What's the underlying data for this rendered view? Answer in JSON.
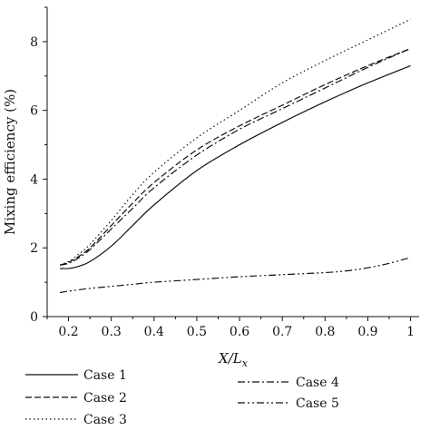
{
  "chart_data": {
    "type": "line",
    "title": "",
    "xlabel": "X/L_x",
    "xlabel_parts": {
      "base": "X/L",
      "sub": "x"
    },
    "ylabel": "Mixing efficiency (%)",
    "xlim": [
      0.15,
      1.02
    ],
    "ylim": [
      0,
      9
    ],
    "xticks": [
      0.2,
      0.3,
      0.4,
      0.5,
      0.6,
      0.7,
      0.8,
      0.9,
      1
    ],
    "xtick_labels": [
      "0.2",
      "0.3",
      "0.4",
      "0.5",
      "0.6",
      "0.7",
      "0.8",
      "0.9",
      "1"
    ],
    "yticks": [
      0,
      2,
      4,
      6,
      8
    ],
    "ytick_labels": [
      "0",
      "2",
      "4",
      "6",
      "8"
    ],
    "grid": false,
    "legend_position": "bottom",
    "series": [
      {
        "name": "Case 1",
        "style": "solid",
        "x": [
          0.18,
          0.2,
          0.22,
          0.25,
          0.3,
          0.35,
          0.4,
          0.5,
          0.6,
          0.7,
          0.8,
          0.9,
          1.0
        ],
        "y": [
          1.4,
          1.4,
          1.45,
          1.6,
          2.05,
          2.65,
          3.25,
          4.25,
          5.0,
          5.65,
          6.25,
          6.8,
          7.3
        ]
      },
      {
        "name": "Case 2",
        "style": "dashed",
        "x": [
          0.18,
          0.2,
          0.22,
          0.25,
          0.3,
          0.35,
          0.4,
          0.5,
          0.6,
          0.7,
          0.8,
          0.9,
          1.0
        ],
        "y": [
          1.5,
          1.58,
          1.72,
          2.0,
          2.65,
          3.3,
          3.9,
          4.85,
          5.55,
          6.15,
          6.75,
          7.3,
          7.8
        ]
      },
      {
        "name": "Case 3",
        "style": "dotted",
        "x": [
          0.18,
          0.2,
          0.22,
          0.25,
          0.3,
          0.35,
          0.4,
          0.5,
          0.6,
          0.7,
          0.8,
          0.9,
          1.0
        ],
        "y": [
          1.5,
          1.6,
          1.78,
          2.1,
          2.8,
          3.55,
          4.2,
          5.2,
          6.0,
          6.8,
          7.45,
          8.05,
          8.65
        ]
      },
      {
        "name": "Case 4",
        "style": "dashdot",
        "x": [
          0.18,
          0.2,
          0.22,
          0.25,
          0.3,
          0.35,
          0.4,
          0.5,
          0.6,
          0.7,
          0.8,
          0.9,
          1.0
        ],
        "y": [
          1.5,
          1.55,
          1.68,
          1.95,
          2.55,
          3.15,
          3.75,
          4.7,
          5.45,
          6.05,
          6.65,
          7.25,
          7.8
        ]
      },
      {
        "name": "Case 5",
        "style": "dashdotdot",
        "x": [
          0.18,
          0.2,
          0.25,
          0.3,
          0.35,
          0.4,
          0.5,
          0.6,
          0.7,
          0.8,
          0.85,
          0.9,
          0.95,
          1.0
        ],
        "y": [
          0.7,
          0.74,
          0.82,
          0.88,
          0.94,
          1.0,
          1.08,
          1.16,
          1.22,
          1.28,
          1.33,
          1.42,
          1.55,
          1.72
        ]
      }
    ]
  }
}
